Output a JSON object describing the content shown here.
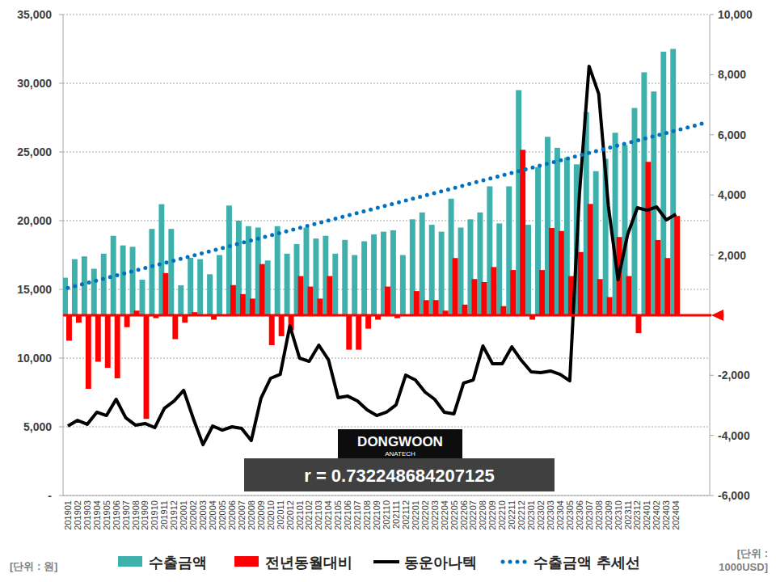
{
  "chart_data": {
    "type": "bar",
    "categories": [
      "201901",
      "201902",
      "201903",
      "201904",
      "201905",
      "201906",
      "201907",
      "201908",
      "201909",
      "201910",
      "201911",
      "201912",
      "202001",
      "202002",
      "202003",
      "202004",
      "202005",
      "202006",
      "202007",
      "202008",
      "202009",
      "202010",
      "202011",
      "202012",
      "202101",
      "202102",
      "202103",
      "202104",
      "202105",
      "202106",
      "202107",
      "202108",
      "202109",
      "202110",
      "202111",
      "202112",
      "202201",
      "202202",
      "202203",
      "202204",
      "202205",
      "202206",
      "202207",
      "202208",
      "202209",
      "202210",
      "202211",
      "202212",
      "202301",
      "202302",
      "202303",
      "202304",
      "202305",
      "202306",
      "202307",
      "202308",
      "202309",
      "202310",
      "202311",
      "202312",
      "202401",
      "202402",
      "202403",
      "202404",
      null,
      null,
      null
    ],
    "series": [
      {
        "name": "수출금액",
        "type": "bar",
        "color": "#3fb1ad",
        "values": [
          15850,
          17200,
          17400,
          16500,
          17600,
          18900,
          18200,
          18100,
          15700,
          19400,
          21200,
          19400,
          15300,
          17300,
          17200,
          16100,
          17500,
          21100,
          20000,
          19600,
          19500,
          17100,
          19600,
          17600,
          18300,
          19500,
          18700,
          18900,
          17600,
          18600,
          17500,
          18500,
          19000,
          19200,
          19300,
          17500,
          20100,
          20600,
          19700,
          19200,
          21600,
          19500,
          20100,
          20600,
          22500,
          19800,
          22500,
          29500,
          19700,
          23900,
          26100,
          25300,
          24600,
          24100,
          27900,
          23600,
          24500,
          26400,
          25500,
          28200,
          30800,
          29400,
          32300,
          32500,
          null,
          null,
          null
        ]
      },
      {
        "name": "전년동월대비",
        "type": "bar",
        "color": "#ff0000",
        "axis": "y2",
        "values": [
          -850,
          -250,
          -2450,
          -1550,
          -1750,
          -2100,
          -400,
          150,
          -3450,
          -100,
          1400,
          -800,
          -250,
          100,
          0,
          -150,
          0,
          1000,
          700,
          550,
          1700,
          -1000,
          -700,
          -500,
          1300,
          950,
          550,
          1300,
          0,
          -1150,
          -1150,
          -450,
          -150,
          950,
          -100,
          0,
          800,
          500,
          500,
          150,
          1900,
          350,
          1200,
          1100,
          1600,
          300,
          1500,
          5500,
          -150,
          1500,
          2900,
          2800,
          1300,
          2100,
          3700,
          1200,
          600,
          2600,
          1300,
          -600,
          5100,
          2500,
          1900,
          3300,
          null,
          null,
          null
        ]
      },
      {
        "name": "동운아나텍",
        "type": "line",
        "color": "#000000",
        "line_style": "solid",
        "values": [
          5060,
          5470,
          5180,
          6060,
          5820,
          7000,
          5650,
          5120,
          5240,
          4940,
          6350,
          6880,
          7650,
          5590,
          3700,
          5060,
          4760,
          5000,
          4880,
          4000,
          7060,
          8530,
          8820,
          12350,
          10000,
          9760,
          10940,
          9880,
          7120,
          7230,
          6880,
          6230,
          5820,
          6060,
          6590,
          8760,
          8410,
          7530,
          7000,
          6060,
          5940,
          8180,
          8410,
          10880,
          9590,
          9590,
          10820,
          9820,
          9000,
          8940,
          9060,
          8820,
          8350,
          21900,
          31240,
          29230,
          21060,
          15700,
          19000,
          20940,
          20760,
          21000,
          20060,
          20470,
          null,
          null,
          null
        ]
      },
      {
        "name": "수출금액 추세선",
        "type": "line",
        "color": "#0070c0",
        "line_style": "dotted",
        "values": [
          15100,
          15282,
          15464,
          15646,
          15828,
          16010,
          16192,
          16374,
          16556,
          16738,
          16920,
          17102,
          17284,
          17466,
          17648,
          17830,
          18012,
          18194,
          18376,
          18558,
          18740,
          18922,
          19104,
          19286,
          19468,
          19650,
          19832,
          20014,
          20196,
          20378,
          20560,
          20742,
          20924,
          21106,
          21288,
          21470,
          21652,
          21834,
          22016,
          22198,
          22380,
          22562,
          22744,
          22926,
          23108,
          23290,
          23472,
          23654,
          23836,
          24018,
          24200,
          24382,
          24564,
          24746,
          24928,
          25110,
          25292,
          25474,
          25656,
          25838,
          26020,
          26202,
          26384,
          26566,
          26748,
          26930,
          27112
        ]
      }
    ],
    "ylim": [
      0,
      35000
    ],
    "yticks": [
      {
        "value": 0,
        "label": "-"
      },
      {
        "value": 5000,
        "label": "5,000"
      },
      {
        "value": 10000,
        "label": "10,000"
      },
      {
        "value": 15000,
        "label": "15,000"
      },
      {
        "value": 20000,
        "label": "20,000"
      },
      {
        "value": 25000,
        "label": "25,000"
      },
      {
        "value": 30000,
        "label": "30,000"
      },
      {
        "value": 35000,
        "label": "35,000"
      }
    ],
    "y2lim": [
      -6000,
      10000
    ],
    "y2ticks": [
      {
        "value": -6000,
        "label": "-6,000"
      },
      {
        "value": -4000,
        "label": "-4,000"
      },
      {
        "value": -2000,
        "label": "-2,000"
      },
      0,
      {
        "value": 2000,
        "label": "2,000"
      },
      {
        "value": 4000,
        "label": "4,000"
      },
      {
        "value": 6000,
        "label": "6,000"
      },
      {
        "value": 8000,
        "label": "8,000"
      },
      {
        "value": 10000,
        "label": "10,000"
      }
    ],
    "y_label": "[단위 : 원]",
    "y2_label": "[단위 : 1000USD]",
    "annotations": [
      "DONGWOON",
      "ANATECH",
      "r = 0.732248684207125"
    ],
    "grid": true,
    "legend": "bottom"
  }
}
